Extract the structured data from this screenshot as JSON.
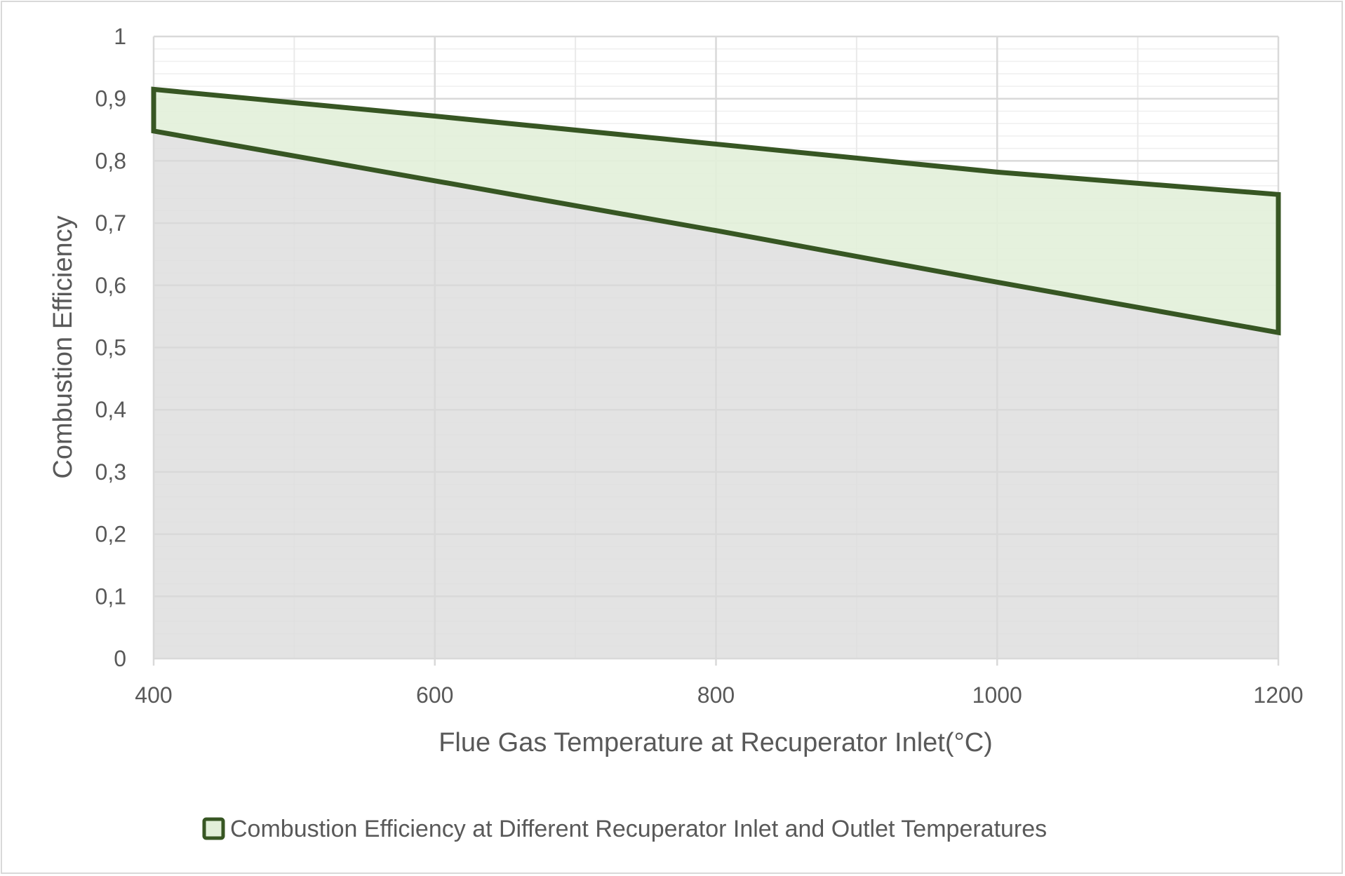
{
  "chart_data": {
    "type": "area",
    "title": "",
    "xlabel": "Flue Gas Temperature at Recuperator Inlet(°C)",
    "ylabel": "Combustion Efficiency",
    "x": [
      400,
      600,
      800,
      1000,
      1200
    ],
    "xlim": [
      400,
      1200
    ],
    "ylim": [
      0,
      1
    ],
    "x_ticks": [
      "400",
      "600",
      "800",
      "1000",
      "1200"
    ],
    "y_ticks": [
      "0",
      "0,1",
      "0,2",
      "0,3",
      "0,4",
      "0,5",
      "0,6",
      "0,7",
      "0,8",
      "0,9",
      "1"
    ],
    "y_tick_values": [
      0,
      0.1,
      0.2,
      0.3,
      0.4,
      0.5,
      0.6,
      0.7,
      0.8,
      0.9,
      1
    ],
    "series": [
      {
        "name": "Combustion Efficiency at Different Recuperator Inlet and Outlet Temperatures",
        "upper": [
          0.915,
          0.872,
          0.827,
          0.782,
          0.746
        ],
        "lower": [
          0.848,
          0.768,
          0.688,
          0.605,
          0.524
        ]
      }
    ],
    "grid": true,
    "legend": "bottom",
    "colors": {
      "band_fill": "#e2efd9",
      "band_edge": "#375623",
      "below_fill": "#dedede",
      "grid": "#d9d9d9"
    }
  }
}
